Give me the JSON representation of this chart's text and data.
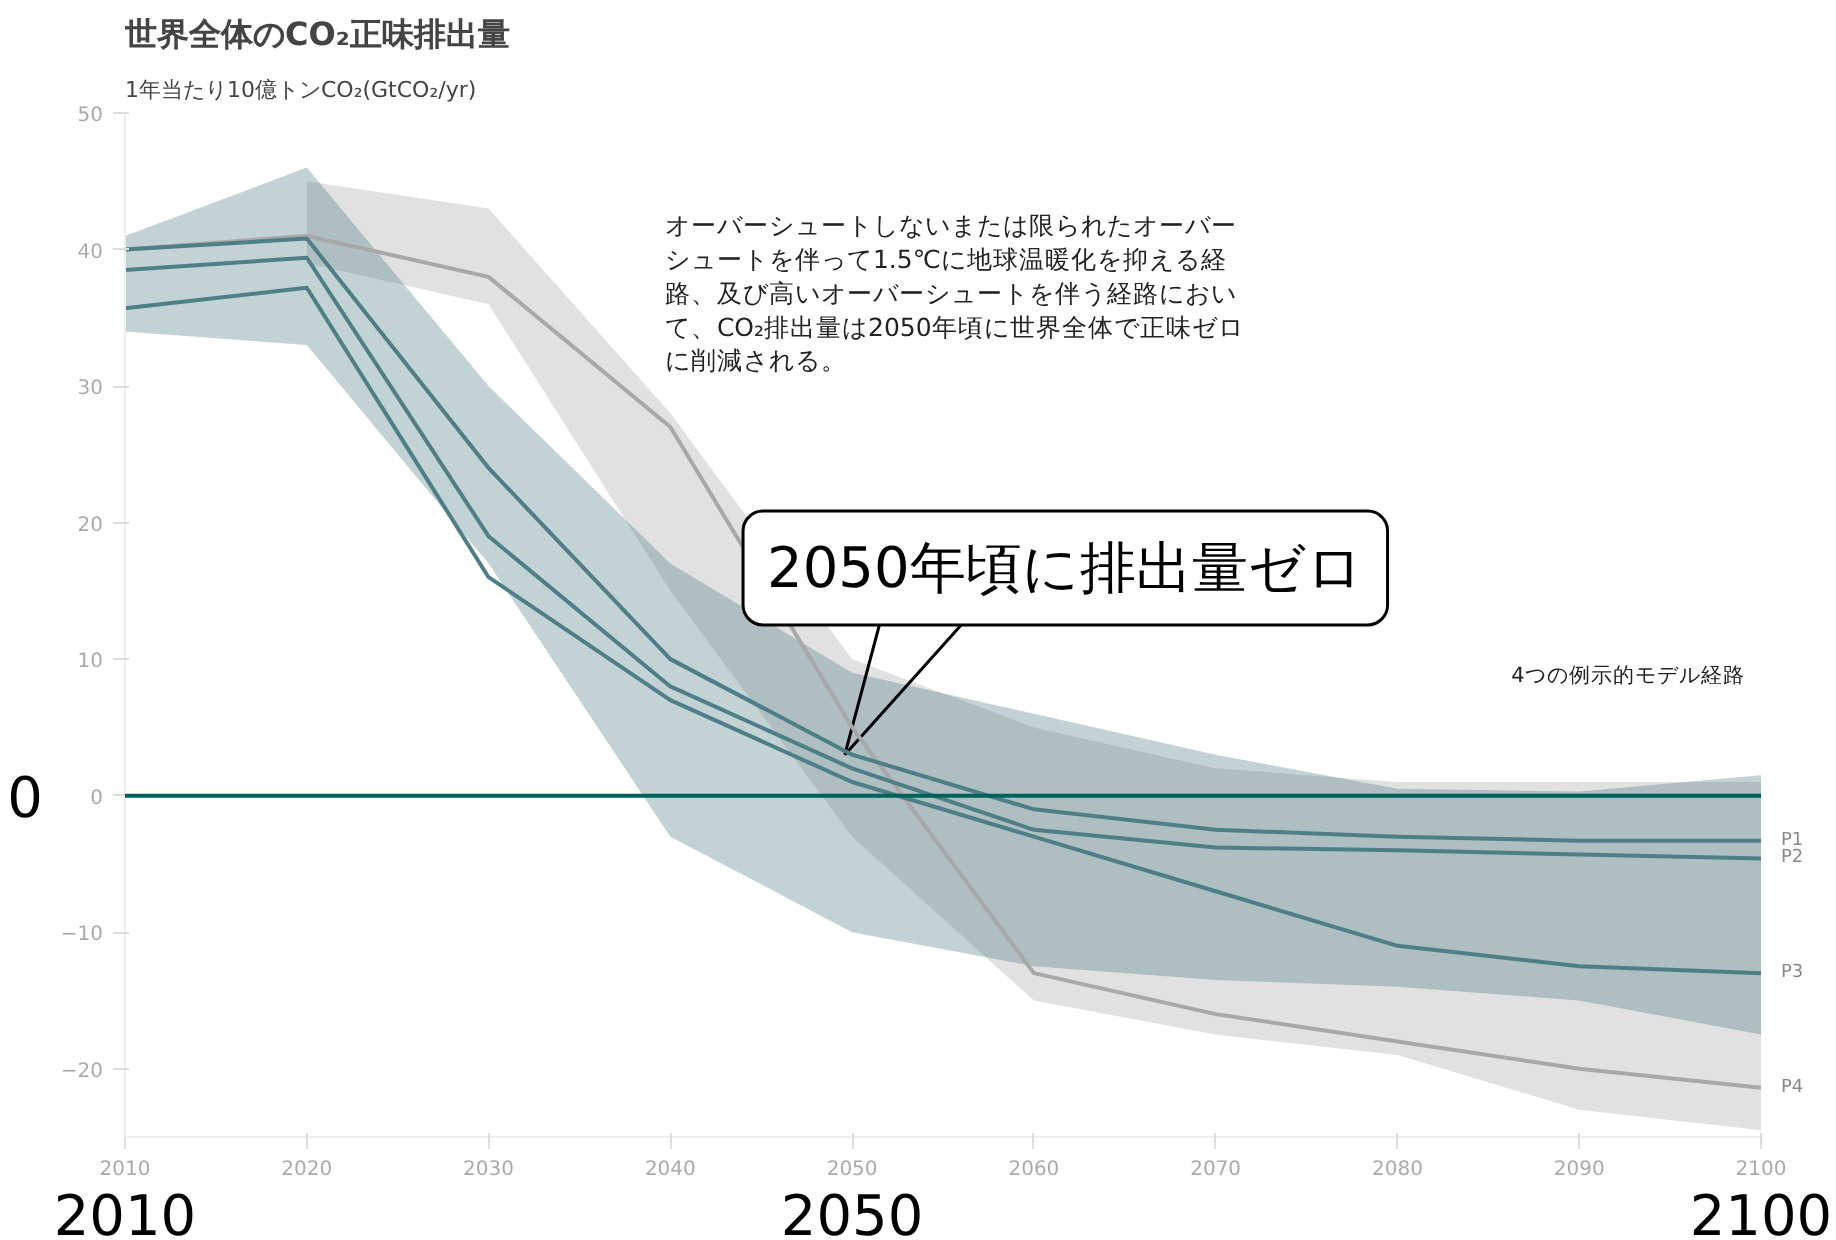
{
  "chart_data": {
    "type": "line",
    "title": "世界全体のCO₂正味排出量",
    "subtitle": "1年当たり10億トンCO₂(GtCO₂/yr)",
    "x": [
      2010,
      2020,
      2030,
      2040,
      2050,
      2060,
      2070,
      2080,
      2090,
      2100
    ],
    "series": [
      {
        "name": "P4",
        "color": "#a8a8a8",
        "values": [
          40,
          41,
          38,
          27,
          5,
          -13,
          -16,
          -18,
          -20,
          -21.4
        ],
        "lower": [
          null,
          39,
          36,
          15,
          -3,
          -15,
          -17.5,
          -19,
          -23,
          -24.5
        ],
        "upper": [
          null,
          45,
          43,
          28,
          10,
          5,
          2,
          1,
          1,
          1
        ]
      },
      {
        "name": "P2",
        "color": "#4f7f86",
        "values": [
          38.5,
          39.4,
          19,
          8,
          2,
          -2.5,
          -3.8,
          -4,
          -4.3,
          -4.6
        ],
        "lower": [
          34,
          33,
          17,
          -3,
          -10,
          -12.5,
          -13.5,
          -14,
          -15,
          -17.5
        ],
        "upper": [
          41,
          46,
          30,
          17,
          9,
          6,
          3,
          0.5,
          0.3,
          1.5
        ]
      },
      {
        "name": "P1",
        "color": "#4f7f86",
        "values": [
          40,
          40.8,
          24,
          10,
          3,
          -1,
          -2.5,
          -3,
          -3.3,
          -3.3
        ]
      },
      {
        "name": "P3",
        "color": "#4f7f86",
        "values": [
          35.7,
          37.2,
          16,
          7,
          1,
          -3,
          -7,
          -11,
          -12.5,
          -13
        ]
      }
    ],
    "xlim": [
      2010,
      2100
    ],
    "ylim": [
      -25,
      50
    ],
    "xticks": [
      2010,
      2020,
      2030,
      2040,
      2050,
      2060,
      2070,
      2080,
      2090,
      2100
    ],
    "yticks": [
      -20,
      -10,
      0,
      10,
      20,
      30,
      40,
      50
    ],
    "x2lim": [
      2010,
      2100
    ],
    "x2ticks": [
      2010,
      2050,
      2100
    ],
    "grid": false,
    "ref_lines": [
      {
        "axis": "y",
        "value": 0,
        "color": "#00605a",
        "label": "0"
      }
    ],
    "annotations": [
      "オーバーシュートしないまたは限られたオーバーシュートを伴って1.5℃に地球温暖化を抑える経路、及び高いオーバーシュートを伴う経路において、CO₂排出量は2050年頃に世界全体で正味ゼロに削減される。",
      {
        "text": "2050年頃に排出量ゼロ",
        "x": 2050,
        "y": 3
      },
      "4つの例示的モデル経路"
    ]
  }
}
